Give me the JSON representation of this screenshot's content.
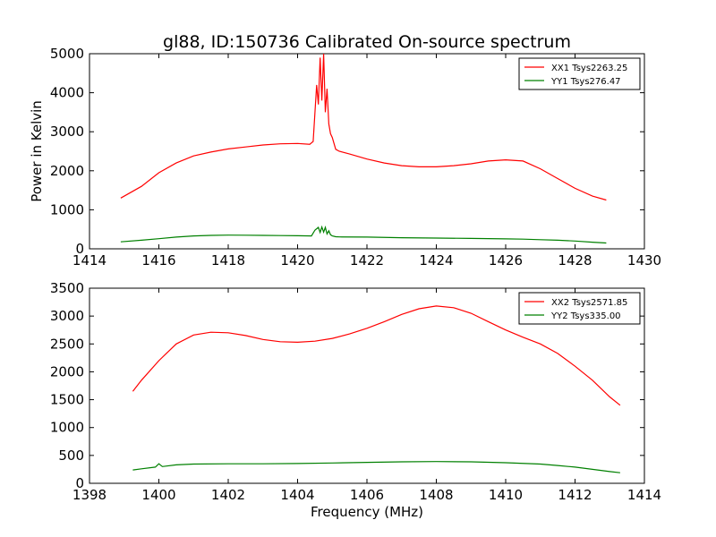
{
  "chart_data": [
    {
      "type": "line",
      "title": "gl88, ID:150736 Calibrated On-source spectrum",
      "xlabel": "",
      "ylabel": "Power in Kelvin",
      "xlim": [
        1414,
        1430
      ],
      "ylim": [
        0,
        5000
      ],
      "xticks": [
        "1414",
        "1416",
        "1418",
        "1420",
        "1422",
        "1424",
        "1426",
        "1428",
        "1430"
      ],
      "yticks": [
        "0",
        "1000",
        "2000",
        "3000",
        "4000",
        "5000"
      ],
      "legend_position": "top-right",
      "series": [
        {
          "name": "XX1 Tsys2263.25",
          "color": "#ff0000",
          "x": [
            1414.9,
            1415.5,
            1416.0,
            1416.5,
            1417.0,
            1417.5,
            1418.0,
            1418.5,
            1419.0,
            1419.5,
            1420.0,
            1420.35,
            1420.45,
            1420.55,
            1420.6,
            1420.65,
            1420.7,
            1420.75,
            1420.8,
            1420.85,
            1420.9,
            1420.95,
            1421.0,
            1421.05,
            1421.1,
            1421.2,
            1421.5,
            1422.0,
            1422.5,
            1423.0,
            1423.5,
            1424.0,
            1424.5,
            1425.0,
            1425.5,
            1426.0,
            1426.5,
            1427.0,
            1427.5,
            1428.0,
            1428.5,
            1428.9
          ],
          "y": [
            1300,
            1600,
            1950,
            2200,
            2380,
            2480,
            2560,
            2610,
            2660,
            2690,
            2700,
            2680,
            2750,
            4200,
            3700,
            4900,
            3800,
            5000,
            3500,
            4100,
            3200,
            2950,
            2850,
            2700,
            2550,
            2500,
            2430,
            2300,
            2200,
            2130,
            2100,
            2100,
            2130,
            2180,
            2250,
            2280,
            2250,
            2050,
            1800,
            1550,
            1350,
            1250
          ]
        },
        {
          "name": "YY1 Tsys276.47",
          "color": "#008000",
          "x": [
            1414.9,
            1415.5,
            1416.0,
            1416.5,
            1417.0,
            1417.5,
            1418.0,
            1418.5,
            1419.0,
            1419.5,
            1420.0,
            1420.4,
            1420.5,
            1420.6,
            1420.65,
            1420.7,
            1420.75,
            1420.8,
            1420.85,
            1420.9,
            1420.95,
            1421.0,
            1421.1,
            1421.2,
            1422.0,
            1423.0,
            1424.0,
            1425.0,
            1426.0,
            1426.5,
            1427.0,
            1427.5,
            1428.0,
            1428.5,
            1428.9
          ],
          "y": [
            180,
            220,
            260,
            300,
            330,
            345,
            350,
            348,
            345,
            340,
            335,
            330,
            480,
            550,
            420,
            560,
            430,
            550,
            380,
            460,
            360,
            330,
            310,
            305,
            300,
            285,
            275,
            265,
            255,
            248,
            235,
            220,
            200,
            170,
            150
          ]
        }
      ]
    },
    {
      "type": "line",
      "title": "",
      "xlabel": "Frequency (MHz)",
      "ylabel": "",
      "xlim": [
        1398,
        1414
      ],
      "ylim": [
        0,
        3500
      ],
      "xticks": [
        "1398",
        "1400",
        "1402",
        "1404",
        "1406",
        "1408",
        "1410",
        "1412",
        "1414"
      ],
      "yticks": [
        "0",
        "500",
        "1000",
        "1500",
        "2000",
        "2500",
        "3000",
        "3500"
      ],
      "legend_position": "top-right",
      "series": [
        {
          "name": "XX2 Tsys2571.85",
          "color": "#ff0000",
          "x": [
            1399.25,
            1399.5,
            1400.0,
            1400.5,
            1401.0,
            1401.5,
            1402.0,
            1402.5,
            1403.0,
            1403.5,
            1404.0,
            1404.5,
            1405.0,
            1405.5,
            1406.0,
            1406.5,
            1407.0,
            1407.5,
            1408.0,
            1408.5,
            1409.0,
            1409.5,
            1410.0,
            1410.5,
            1411.0,
            1411.5,
            1412.0,
            1412.5,
            1413.0,
            1413.3
          ],
          "y": [
            1650,
            1850,
            2200,
            2500,
            2660,
            2710,
            2700,
            2650,
            2580,
            2540,
            2530,
            2550,
            2600,
            2680,
            2780,
            2900,
            3030,
            3130,
            3180,
            3150,
            3050,
            2900,
            2750,
            2620,
            2500,
            2330,
            2100,
            1850,
            1550,
            1400
          ]
        },
        {
          "name": "YY2 Tsys335.00",
          "color": "#008000",
          "x": [
            1399.25,
            1399.5,
            1399.9,
            1400.0,
            1400.1,
            1400.5,
            1401.0,
            1402.0,
            1403.0,
            1404.0,
            1405.0,
            1406.0,
            1407.0,
            1408.0,
            1409.0,
            1410.0,
            1411.0,
            1411.5,
            1412.0,
            1412.5,
            1413.0,
            1413.3
          ],
          "y": [
            240,
            260,
            290,
            350,
            300,
            330,
            345,
            350,
            350,
            355,
            365,
            375,
            385,
            390,
            385,
            370,
            345,
            320,
            290,
            250,
            210,
            190
          ]
        }
      ]
    }
  ]
}
